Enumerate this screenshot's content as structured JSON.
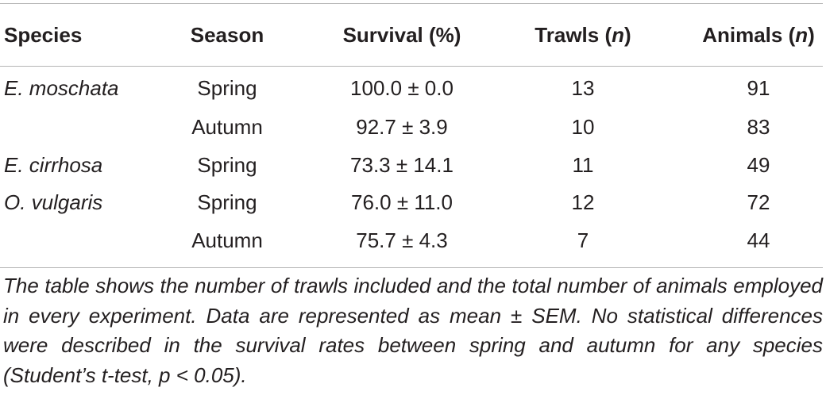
{
  "table": {
    "headers": {
      "species": "Species",
      "season": "Season",
      "survival": "Survival (%)",
      "trawls_prefix": "Trawls (",
      "trawls_n": "n",
      "trawls_suffix": ")",
      "animals_prefix": "Animals (",
      "animals_n": "n",
      "animals_suffix": ")"
    },
    "rows": [
      {
        "species": "E. moschata",
        "season": "Spring",
        "survival": "100.0 ± 0.0",
        "trawls": "13",
        "animals": "91"
      },
      {
        "species": "",
        "season": "Autumn",
        "survival": "92.7 ± 3.9",
        "trawls": "10",
        "animals": "83"
      },
      {
        "species": "E. cirrhosa",
        "season": "Spring",
        "survival": "73.3 ± 14.1",
        "trawls": "11",
        "animals": "49"
      },
      {
        "species": "O. vulgaris",
        "season": "Spring",
        "survival": "76.0 ± 11.0",
        "trawls": "12",
        "animals": "72"
      },
      {
        "species": "",
        "season": "Autumn",
        "survival": "75.7 ± 4.3",
        "trawls": "7",
        "animals": "44"
      }
    ]
  },
  "footnote": "The table shows the number of trawls included and the total number of animals employed in every experiment. Data are represented as mean ± SEM. No statistical differences were described in the survival rates between spring and autumn for any species (Student’s t-test, p < 0.05)."
}
